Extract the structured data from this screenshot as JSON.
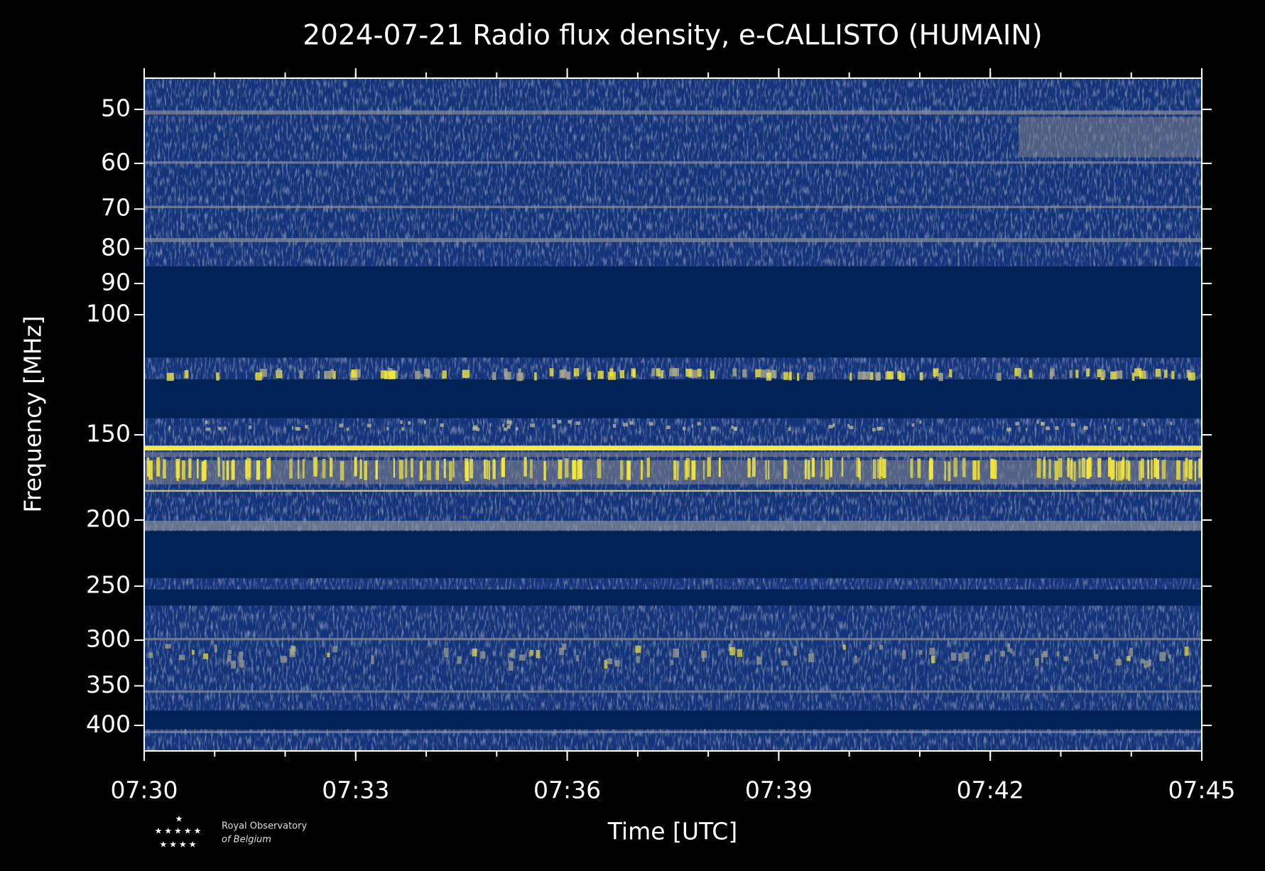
{
  "chart_data": {
    "type": "spectrogram",
    "title": "2024-07-21 Radio flux density, e-CALLISTO (HUMAIN)",
    "xlabel": "Time [UTC]",
    "ylabel": "Frequency [MHz]",
    "xlim": [
      "07:30",
      "07:45"
    ],
    "xticks": [
      "07:30",
      "07:33",
      "07:36",
      "07:39",
      "07:42",
      "07:45"
    ],
    "ylim": [
      45,
      436
    ],
    "yticks": [
      50,
      60,
      70,
      80,
      90,
      100,
      150,
      200,
      250,
      300,
      350,
      400
    ],
    "ylog": true,
    "yinverted": true,
    "logo": {
      "line1": "Royal Observatory",
      "line2": "of Belgium"
    }
  }
}
